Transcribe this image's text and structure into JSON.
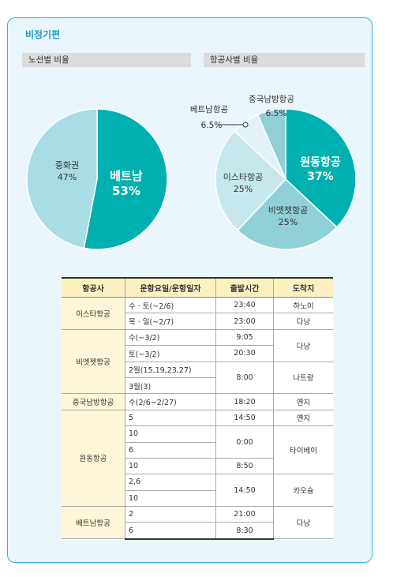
{
  "panel_title": "비정기편",
  "chart_data": [
    {
      "type": "pie",
      "title": "노선별 비율",
      "labels": [
        "베트남",
        "중화권"
      ],
      "values": [
        53,
        47
      ],
      "value_labels": [
        "53%",
        "47%"
      ],
      "colors": [
        "#00b0b0",
        "#a8dde3"
      ]
    },
    {
      "type": "pie",
      "title": "항공사별 비율",
      "labels": [
        "원동항공",
        "비엣젯항공",
        "이스타항공",
        "베트남항공",
        "중국남방항공"
      ],
      "values": [
        37,
        25,
        25,
        6.5,
        6.5
      ],
      "value_labels": [
        "37%",
        "25%",
        "25%",
        "6.5%",
        "6.5%"
      ],
      "colors": [
        "#00b0b0",
        "#8fd1d6",
        "#c6e8ec",
        "#e2f3f5",
        "#90d0d4"
      ]
    }
  ],
  "table": {
    "headers": [
      "항공사",
      "운항요일/운항일자",
      "출발시간",
      "도착지"
    ],
    "airlines": [
      "이스타항공",
      "비엣젯항공",
      "중국남방항공",
      "원동항공",
      "베트남항공"
    ],
    "schedule": [
      "수 · 토(~2/6)",
      "목 · 일(~2/7)",
      "수(~3/2)",
      "토(~3/2)",
      "2월(15,19,23,27)",
      "3월(3)",
      "수(2/6~2/27)",
      "5",
      "10",
      "6",
      "10",
      "2,6",
      "10",
      "2",
      "6"
    ],
    "times": [
      "23:40",
      "23:00",
      "9:05",
      "20:30",
      "8:00",
      "18:20",
      "14:50",
      "0:00",
      "8:50",
      "14:50",
      "21:00",
      "8:30"
    ],
    "destinations": [
      "하노이",
      "다낭",
      "다낭",
      "나트랑",
      "옌지",
      "옌지",
      "타이베이",
      "카오슝",
      "다낭"
    ]
  }
}
